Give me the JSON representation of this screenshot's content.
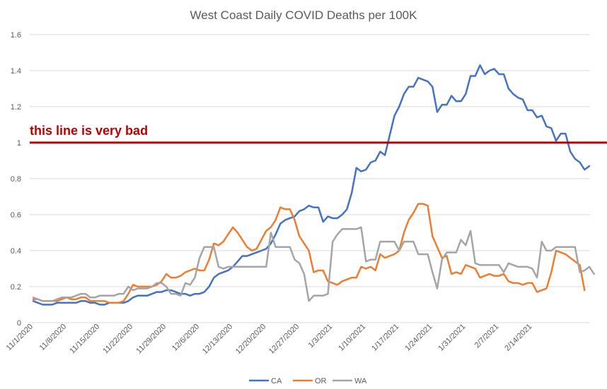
{
  "chart_data": {
    "type": "line",
    "title": "West Coast Daily COVID Deaths per 100K",
    "xlabel": "",
    "ylabel": "",
    "ylim": [
      0,
      1.6
    ],
    "yticks": [
      0,
      0.2,
      0.4,
      0.6,
      0.8,
      1,
      1.2,
      1.4,
      1.6
    ],
    "ytick_labels": [
      "0",
      "0.2",
      "0.4",
      "0.6",
      "0.8",
      "1",
      "1.2",
      "1.4",
      "1.6"
    ],
    "x_start": "11/1/2020",
    "x_end": "2/20/2021",
    "x_tick_labels": [
      "11/1/2020",
      "11/8/2020",
      "11/15/2020",
      "11/22/2020",
      "11/29/2020",
      "12/6/2020",
      "12/13/2020",
      "12/20/2020",
      "12/27/2020",
      "1/3/2021",
      "1/10/2021",
      "1/17/2021",
      "1/24/2021",
      "1/31/2021",
      "2/7/2021",
      "2/14/2021"
    ],
    "grid": true,
    "legend": "bottom",
    "reference_line": {
      "value": 1.0,
      "color": "#c00000",
      "label": "this line is very bad"
    },
    "series": [
      {
        "name": "CA",
        "color": "#4472c4",
        "values": [
          0.12,
          0.11,
          0.1,
          0.1,
          0.1,
          0.11,
          0.11,
          0.11,
          0.11,
          0.11,
          0.12,
          0.12,
          0.11,
          0.11,
          0.1,
          0.1,
          0.11,
          0.11,
          0.11,
          0.11,
          0.12,
          0.14,
          0.15,
          0.15,
          0.15,
          0.16,
          0.17,
          0.17,
          0.18,
          0.18,
          0.17,
          0.16,
          0.16,
          0.15,
          0.16,
          0.16,
          0.17,
          0.2,
          0.25,
          0.27,
          0.28,
          0.29,
          0.31,
          0.34,
          0.37,
          0.37,
          0.38,
          0.39,
          0.4,
          0.41,
          0.44,
          0.49,
          0.55,
          0.57,
          0.58,
          0.59,
          0.62,
          0.63,
          0.65,
          0.64,
          0.64,
          0.56,
          0.59,
          0.58,
          0.58,
          0.6,
          0.63,
          0.72,
          0.86,
          0.84,
          0.85,
          0.89,
          0.9,
          0.95,
          0.93,
          1.04,
          1.15,
          1.2,
          1.27,
          1.31,
          1.31,
          1.36,
          1.35,
          1.34,
          1.31,
          1.17,
          1.21,
          1.21,
          1.26,
          1.23,
          1.23,
          1.27,
          1.37,
          1.37,
          1.43,
          1.38,
          1.4,
          1.41,
          1.38,
          1.38,
          1.3,
          1.27,
          1.25,
          1.24,
          1.18,
          1.18,
          1.14,
          1.15,
          1.09,
          1.08,
          1.01,
          1.05,
          1.05,
          0.95,
          0.91,
          0.89,
          0.85,
          0.87
        ]
      },
      {
        "name": "OR",
        "color": "#ed7d31",
        "values": [
          0.13,
          0.13,
          0.12,
          0.12,
          0.12,
          0.12,
          0.13,
          0.14,
          0.13,
          0.13,
          0.14,
          0.14,
          0.12,
          0.12,
          0.12,
          0.12,
          0.11,
          0.11,
          0.11,
          0.12,
          0.16,
          0.21,
          0.2,
          0.2,
          0.2,
          0.2,
          0.21,
          0.23,
          0.27,
          0.25,
          0.25,
          0.26,
          0.28,
          0.29,
          0.3,
          0.29,
          0.29,
          0.35,
          0.44,
          0.43,
          0.45,
          0.49,
          0.53,
          0.5,
          0.46,
          0.42,
          0.4,
          0.41,
          0.46,
          0.51,
          0.53,
          0.57,
          0.64,
          0.63,
          0.63,
          0.57,
          0.48,
          0.44,
          0.4,
          0.28,
          0.29,
          0.29,
          0.23,
          0.22,
          0.21,
          0.23,
          0.24,
          0.25,
          0.25,
          0.31,
          0.3,
          0.31,
          0.29,
          0.38,
          0.36,
          0.37,
          0.38,
          0.4,
          0.5,
          0.57,
          0.61,
          0.66,
          0.66,
          0.65,
          0.48,
          0.42,
          0.36,
          0.37,
          0.27,
          0.28,
          0.27,
          0.32,
          0.31,
          0.3,
          0.25,
          0.26,
          0.27,
          0.26,
          0.26,
          0.27,
          0.23,
          0.22,
          0.22,
          0.21,
          0.22,
          0.22,
          0.17,
          0.18,
          0.19,
          0.28,
          0.4,
          0.39,
          0.38,
          0.36,
          0.34,
          0.32,
          0.18
        ]
      },
      {
        "name": "WA",
        "color": "#a5a5a5",
        "values": [
          0.14,
          0.13,
          0.12,
          0.12,
          0.12,
          0.13,
          0.14,
          0.14,
          0.14,
          0.15,
          0.16,
          0.16,
          0.14,
          0.14,
          0.15,
          0.15,
          0.15,
          0.15,
          0.16,
          0.16,
          0.2,
          0.18,
          0.19,
          0.19,
          0.19,
          0.2,
          0.22,
          0.22,
          0.2,
          0.16,
          0.16,
          0.15,
          0.22,
          0.21,
          0.25,
          0.36,
          0.42,
          0.42,
          0.42,
          0.31,
          0.3,
          0.31,
          0.31,
          0.31,
          0.31,
          0.31,
          0.31,
          0.31,
          0.31,
          0.31,
          0.5,
          0.42,
          0.42,
          0.42,
          0.42,
          0.35,
          0.33,
          0.27,
          0.12,
          0.15,
          0.15,
          0.15,
          0.16,
          0.45,
          0.49,
          0.52,
          0.52,
          0.52,
          0.52,
          0.53,
          0.34,
          0.35,
          0.35,
          0.45,
          0.45,
          0.45,
          0.45,
          0.4,
          0.45,
          0.45,
          0.45,
          0.38,
          0.38,
          0.38,
          0.28,
          0.19,
          0.35,
          0.39,
          0.39,
          0.39,
          0.46,
          0.43,
          0.51,
          0.33,
          0.32,
          0.32,
          0.32,
          0.32,
          0.32,
          0.28,
          0.33,
          0.32,
          0.31,
          0.31,
          0.31,
          0.3,
          0.25,
          0.45,
          0.4,
          0.4,
          0.42,
          0.42,
          0.42,
          0.42,
          0.42,
          0.28,
          0.29,
          0.31,
          0.27
        ]
      }
    ]
  }
}
